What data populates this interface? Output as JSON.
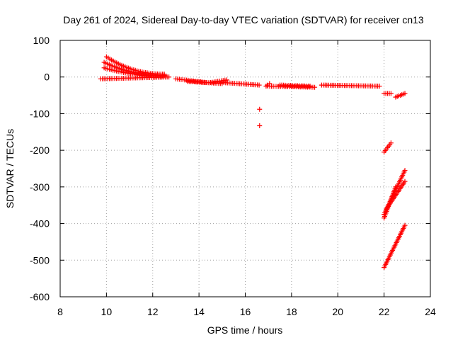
{
  "chart_data": {
    "type": "scatter",
    "title": "Day 261 of 2024, Sidereal Day-to-day VTEC variation (SDTVAR) for receiver cn13",
    "xlabel": "GPS time / hours",
    "ylabel": "SDTVAR / TECUs",
    "xlim": [
      8,
      24
    ],
    "ylim": [
      -600,
      100
    ],
    "xticks": [
      "8",
      "10",
      "12",
      "14",
      "16",
      "18",
      "20",
      "22",
      "24"
    ],
    "yticks": [
      "100",
      "0",
      "-100",
      "-200",
      "-300",
      "-400",
      "-500",
      "-600"
    ],
    "grid": true,
    "marker": "+",
    "series": [
      {
        "name": "SDTVAR",
        "color": "#ff0000",
        "segments": [
          {
            "x0": 9.75,
            "y0": -5,
            "x1": 12.7,
            "y1": 0
          },
          {
            "x0": 9.9,
            "y0": 25,
            "x1": 12.5,
            "y1": 3
          },
          {
            "x0": 9.9,
            "y0": 40,
            "x1": 12.5,
            "y1": 5
          },
          {
            "x0": 10.0,
            "y0": 55,
            "x1": 12.5,
            "y1": 8
          },
          {
            "x0": 13.0,
            "y0": -5,
            "x1": 14.3,
            "y1": -15
          },
          {
            "x0": 13.5,
            "y0": -12,
            "x1": 15.0,
            "y1": -18
          },
          {
            "x0": 14.5,
            "y0": -15,
            "x1": 15.2,
            "y1": -8
          },
          {
            "x0": 15.0,
            "y0": -15,
            "x1": 16.6,
            "y1": -22
          },
          {
            "x0": 16.9,
            "y0": -25,
            "x1": 19.0,
            "y1": -28
          },
          {
            "x0": 17.5,
            "y0": -22,
            "x1": 18.8,
            "y1": -25
          },
          {
            "x0": 19.3,
            "y0": -22,
            "x1": 21.8,
            "y1": -25
          },
          {
            "x0": 22.0,
            "y0": -45,
            "x1": 22.3,
            "y1": -45
          },
          {
            "x0": 22.5,
            "y0": -55,
            "x1": 22.9,
            "y1": -45
          },
          {
            "x0": 22.0,
            "y0": -205,
            "x1": 22.3,
            "y1": -180
          },
          {
            "x0": 22.0,
            "y0": -385,
            "x1": 22.5,
            "y1": -300
          },
          {
            "x0": 22.0,
            "y0": -375,
            "x1": 22.9,
            "y1": -255
          },
          {
            "x0": 22.1,
            "y0": -360,
            "x1": 22.9,
            "y1": -285
          },
          {
            "x0": 22.0,
            "y0": -520,
            "x1": 22.9,
            "y1": -405
          }
        ],
        "points": [
          {
            "x": 16.62,
            "y": -88
          },
          {
            "x": 16.62,
            "y": -133
          },
          {
            "x": 17.05,
            "y": -18
          },
          {
            "x": 16.95,
            "y": -22
          }
        ]
      }
    ]
  }
}
